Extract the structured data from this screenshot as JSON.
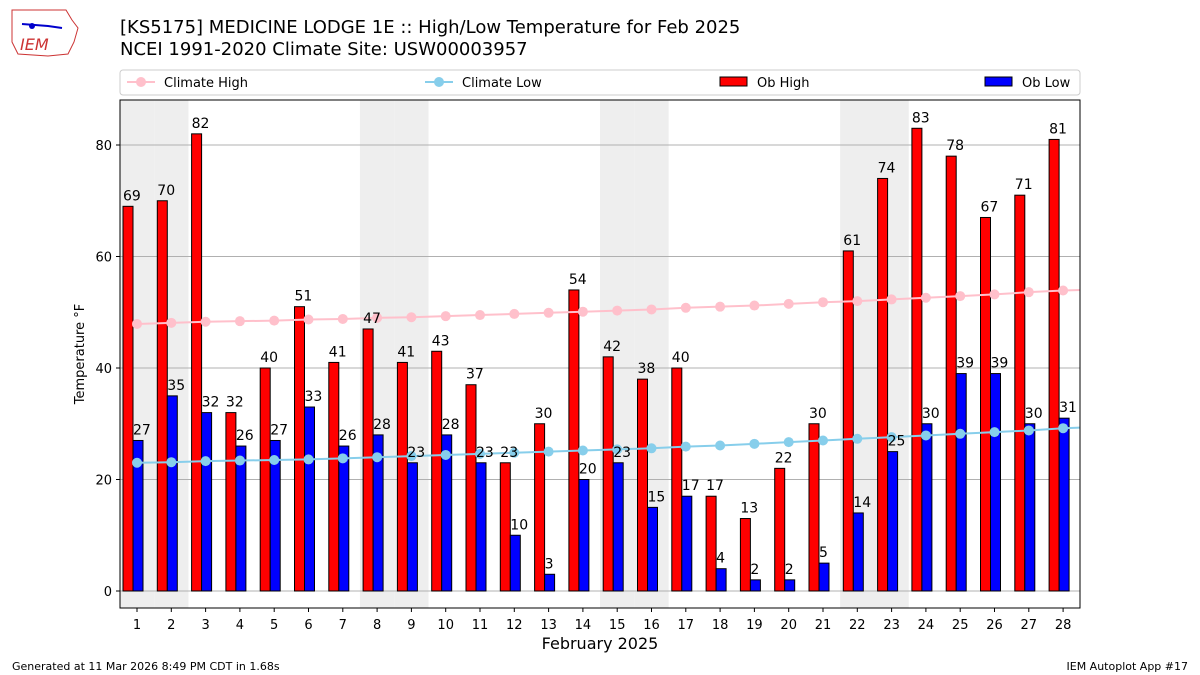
{
  "logo_text": "IEM",
  "title_line1": "[KS5175] MEDICINE LODGE 1E :: High/Low Temperature for Feb 2025",
  "title_line2": "NCEI 1991-2020 Climate Site: USW00003957",
  "footer_left": "Generated at 11 Mar 2026 8:49 PM CDT in 1.68s",
  "footer_right": "IEM Autoplot App #17",
  "colors": {
    "ob_high": "#ff0000",
    "ob_low": "#0000ff",
    "climate_high": "#ffc0cb",
    "climate_low": "#87ceeb",
    "weekend": "#eeeeee"
  },
  "chart_data": {
    "type": "bar",
    "xlabel": "February 2025",
    "ylabel": "Temperature °F",
    "ylim": [
      -3,
      88
    ],
    "yticks": [
      0,
      20,
      40,
      60,
      80
    ],
    "grid": true,
    "legend_position": "top",
    "categories": [
      1,
      2,
      3,
      4,
      5,
      6,
      7,
      8,
      9,
      10,
      11,
      12,
      13,
      14,
      15,
      16,
      17,
      18,
      19,
      20,
      21,
      22,
      23,
      24,
      25,
      26,
      27,
      28
    ],
    "weekend_days": [
      1,
      2,
      8,
      9,
      15,
      16,
      22,
      23
    ],
    "series": [
      {
        "name": "Climate High",
        "type": "line",
        "values": [
          47.9,
          48.1,
          48.3,
          48.4,
          48.5,
          48.7,
          48.8,
          49.0,
          49.1,
          49.3,
          49.5,
          49.7,
          49.9,
          50.1,
          50.3,
          50.5,
          50.8,
          51.0,
          51.2,
          51.5,
          51.8,
          52.0,
          52.3,
          52.6,
          52.9,
          53.2,
          53.6,
          53.9
        ]
      },
      {
        "name": "Climate Low",
        "type": "line",
        "values": [
          23.0,
          23.1,
          23.3,
          23.4,
          23.5,
          23.6,
          23.8,
          24.0,
          24.2,
          24.4,
          24.6,
          24.8,
          25.0,
          25.2,
          25.4,
          25.6,
          25.9,
          26.1,
          26.4,
          26.7,
          27.0,
          27.3,
          27.6,
          27.9,
          28.2,
          28.5,
          28.8,
          29.2
        ]
      },
      {
        "name": "Ob High",
        "type": "bar",
        "values": [
          69,
          70,
          82,
          32,
          40,
          51,
          41,
          47,
          41,
          43,
          37,
          23,
          30,
          54,
          42,
          38,
          40,
          17,
          13,
          22,
          30,
          61,
          74,
          83,
          78,
          67,
          71,
          81
        ]
      },
      {
        "name": "Ob Low",
        "type": "bar",
        "values": [
          27,
          35,
          32,
          26,
          27,
          33,
          26,
          28,
          23,
          28,
          23,
          10,
          3,
          20,
          23,
          15,
          17,
          4,
          2,
          2,
          5,
          14,
          25,
          30,
          39,
          39,
          30,
          31
        ]
      }
    ]
  }
}
